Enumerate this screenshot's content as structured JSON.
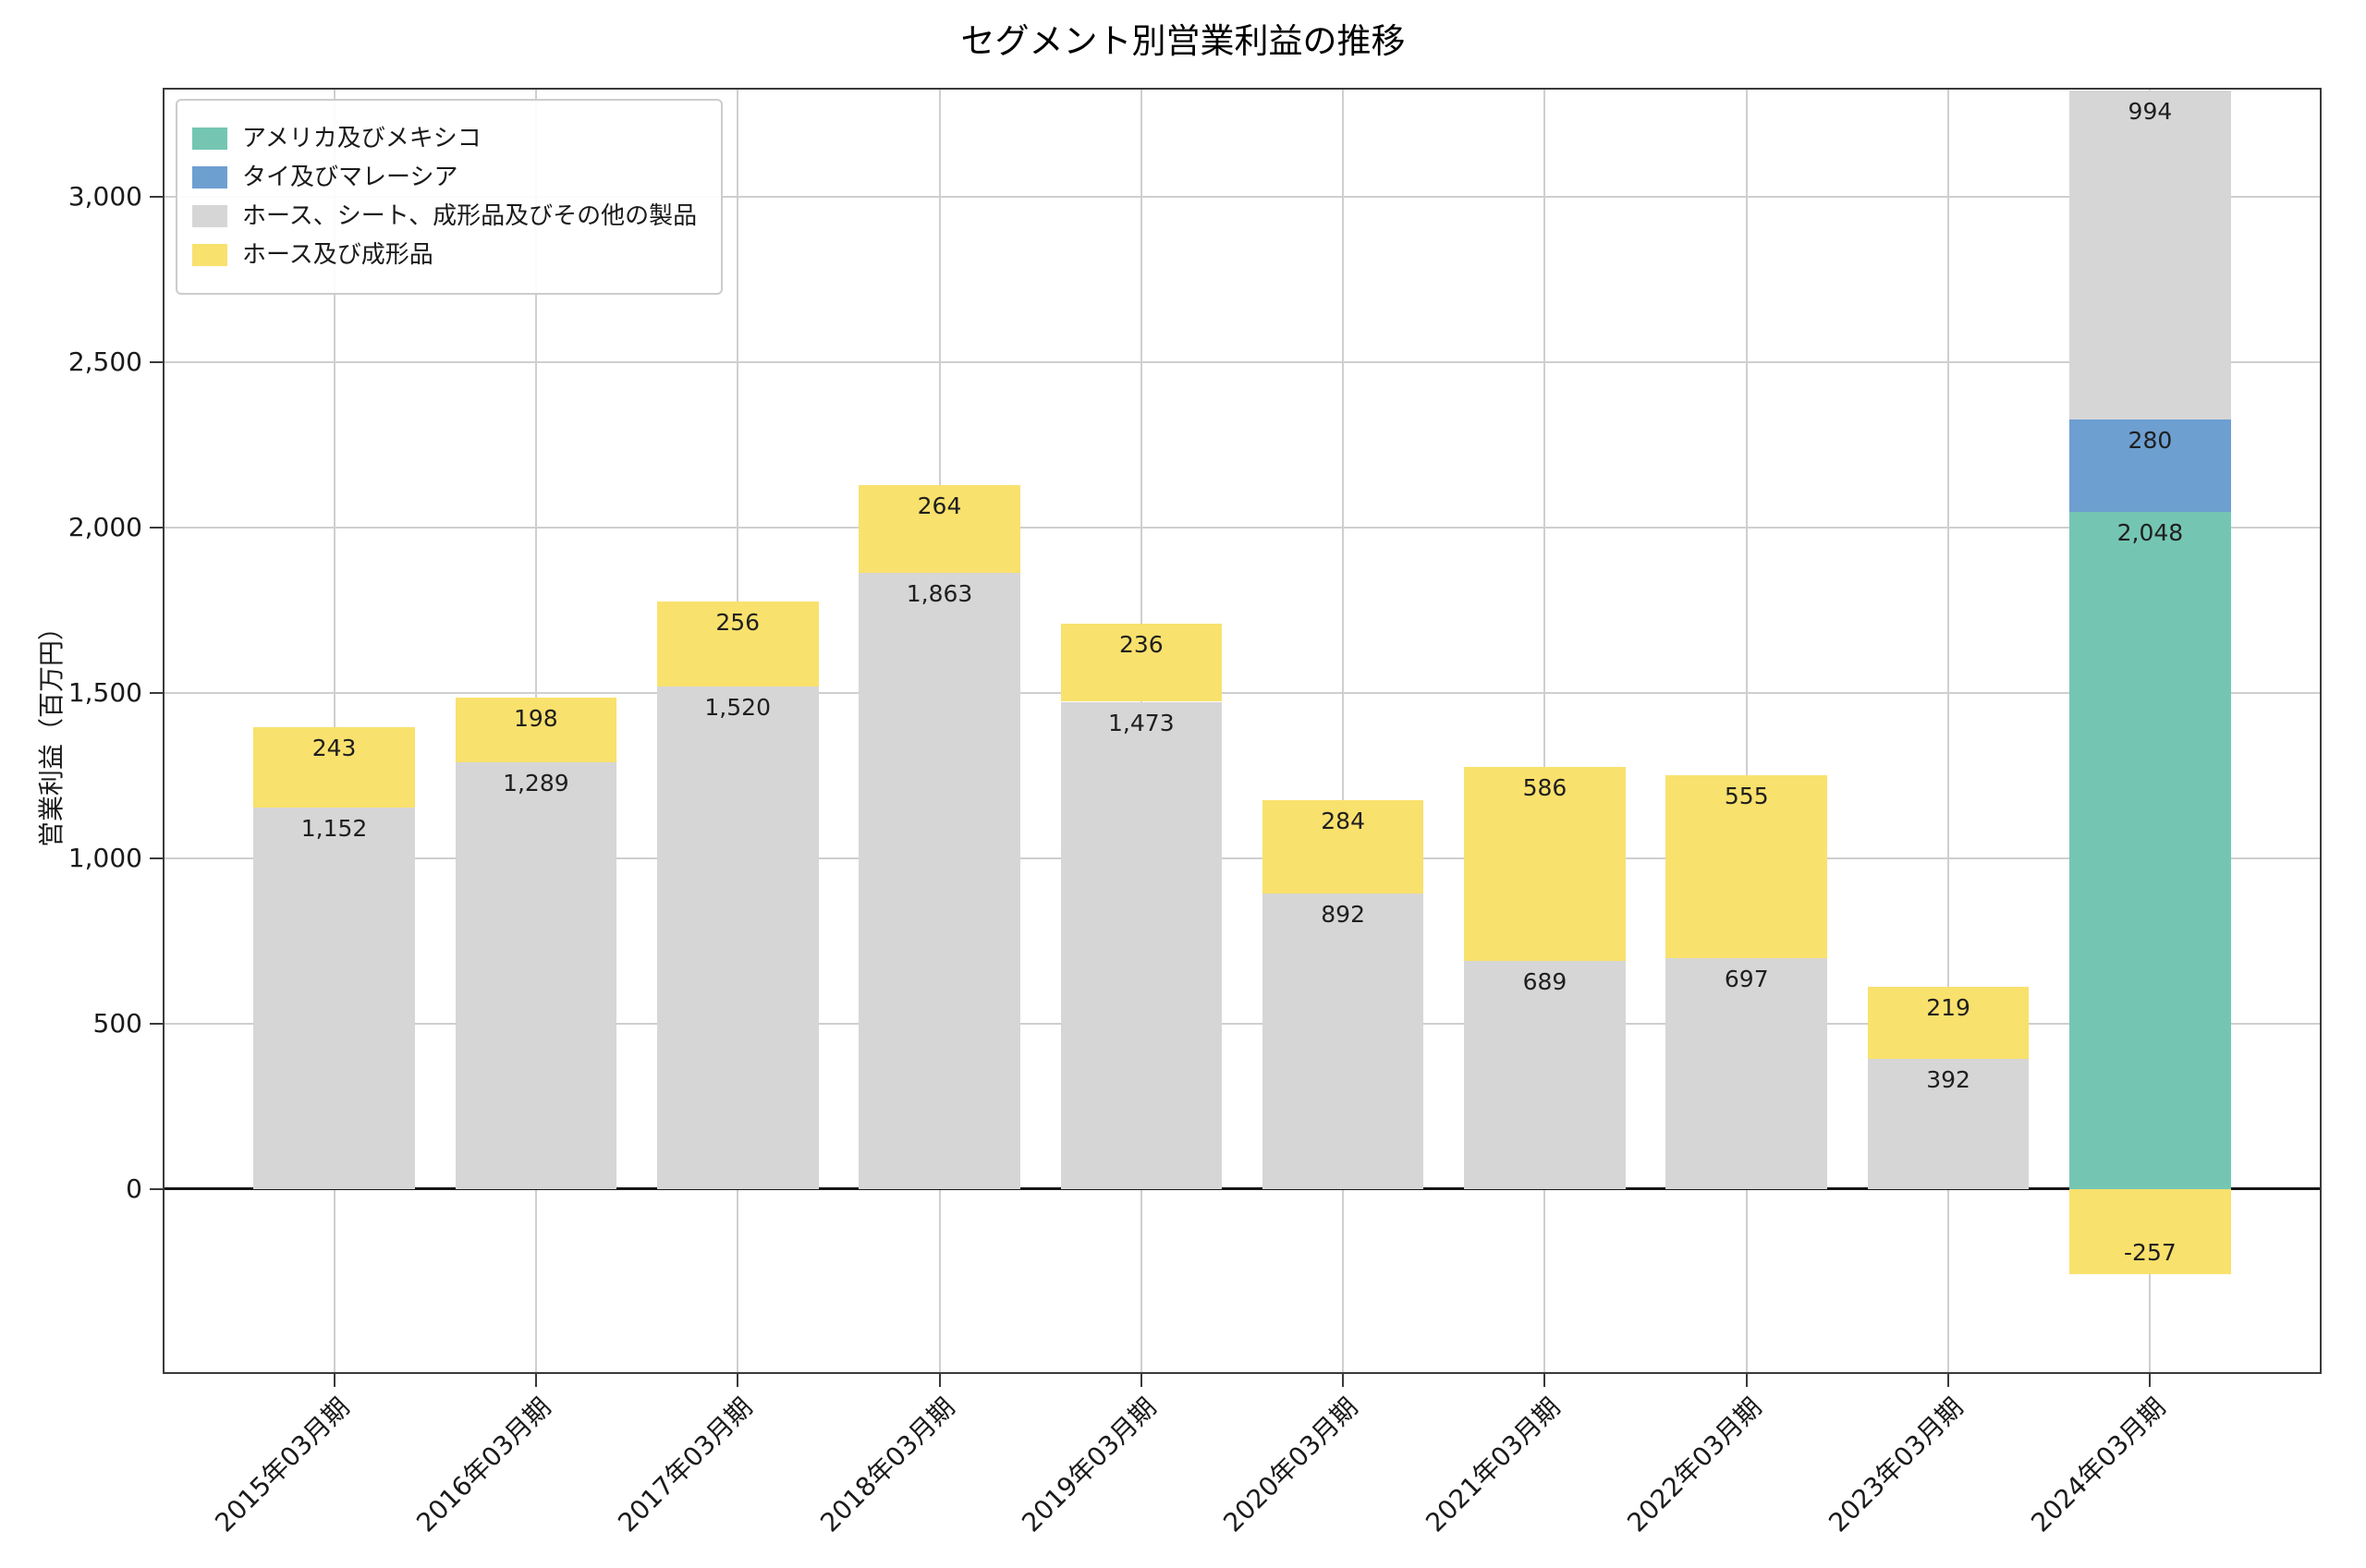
{
  "chart_data": {
    "type": "bar",
    "stacked": true,
    "title": "セグメント別営業利益の推移",
    "xlabel": "",
    "ylabel": "営業利益（百万円）",
    "categories": [
      "2015年03月期",
      "2016年03月期",
      "2017年03月期",
      "2018年03月期",
      "2019年03月期",
      "2020年03月期",
      "2021年03月期",
      "2022年03月期",
      "2023年03月期",
      "2024年03月期"
    ],
    "series": [
      {
        "name": "アメリカ及びメキシコ",
        "color": "#74c6b2",
        "values": [
          null,
          null,
          null,
          null,
          null,
          null,
          null,
          null,
          null,
          2048
        ]
      },
      {
        "name": "タイ及びマレーシア",
        "color": "#6d9fd1",
        "values": [
          null,
          null,
          null,
          null,
          null,
          null,
          null,
          null,
          null,
          280
        ]
      },
      {
        "name": "ホース、シート、成形品及びその他の製品",
        "color": "#d6d6d6",
        "values": [
          1152,
          1289,
          1520,
          1863,
          1473,
          892,
          689,
          697,
          392,
          994
        ]
      },
      {
        "name": "ホース及び成形品",
        "color": "#f9e16d",
        "values": [
          243,
          198,
          256,
          264,
          236,
          284,
          586,
          555,
          219,
          -257
        ]
      }
    ],
    "yticks": [
      0,
      500,
      1000,
      1500,
      2000,
      2500,
      3000
    ],
    "ylim": [
      -560,
      3330
    ],
    "grid": true,
    "legend_position": "upper-left",
    "colors": {
      "grid": "#cfcfcf",
      "spine": "#3a3a3c",
      "zero_line": "#161616",
      "bar_label": "#1f1f1f",
      "background": "#ffffff"
    }
  }
}
